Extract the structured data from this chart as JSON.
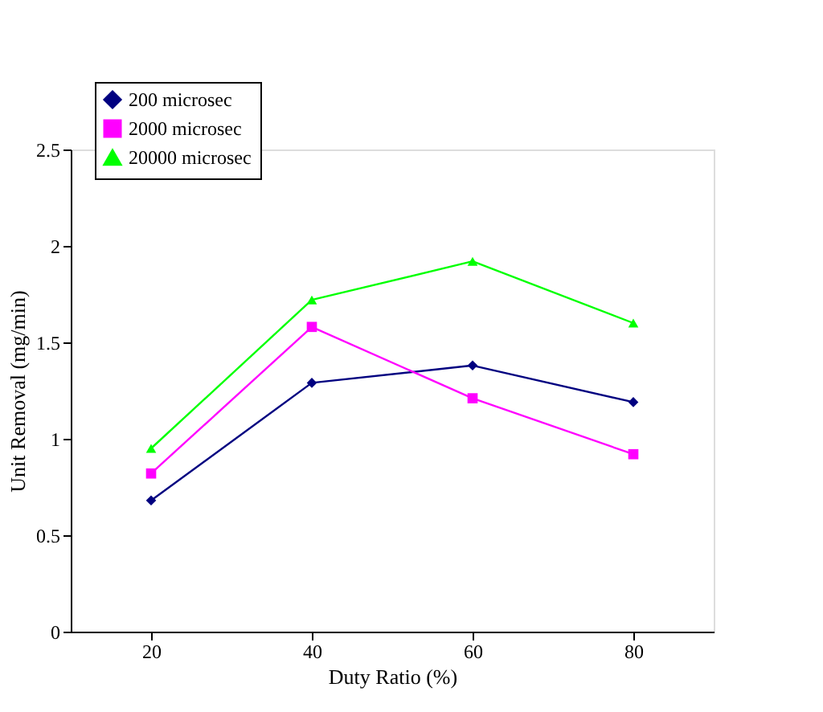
{
  "chart_data": {
    "type": "line",
    "xlabel": "Duty Ratio (%)",
    "ylabel": "Unit Removal (mg/min)",
    "categories": [
      "20",
      "40",
      "60",
      "80"
    ],
    "ylim": [
      0,
      2.5
    ],
    "yticks": [
      0,
      0.5,
      1,
      1.5,
      2,
      2.5
    ],
    "grid": false,
    "legend": "top left",
    "series": [
      {
        "name": "200 microsec",
        "color": "#000080",
        "marker": "diamond",
        "values": [
          0.68,
          1.29,
          1.38,
          1.19
        ]
      },
      {
        "name": "2000 microsec",
        "color": "#ff00ff",
        "marker": "square",
        "values": [
          0.82,
          1.58,
          1.21,
          0.92
        ]
      },
      {
        "name": "20000 microsec",
        "color": "#00ff00",
        "marker": "triangle",
        "values": [
          0.95,
          1.72,
          1.92,
          1.6
        ]
      }
    ]
  }
}
